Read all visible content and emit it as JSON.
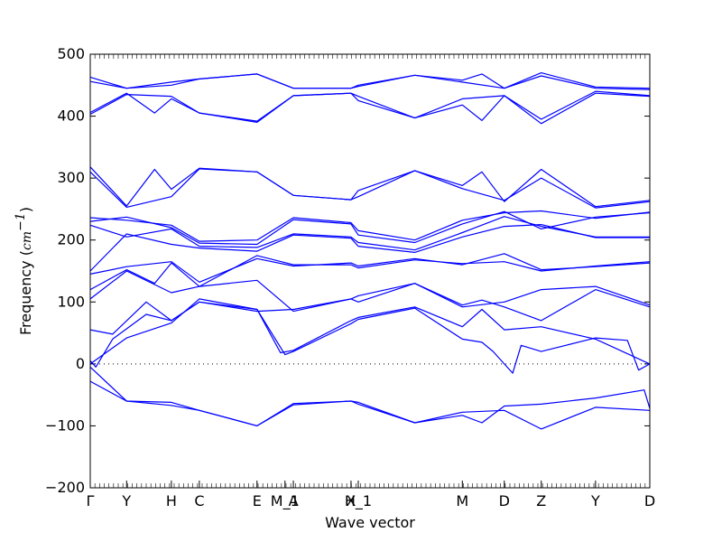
{
  "chart_data": {
    "type": "line",
    "title": "",
    "xlabel": "Wave vector",
    "ylabel": "Frequency (cm⁻¹)",
    "ylabel_prefix": "Frequency (",
    "ylabel_unit": "cm",
    "ylabel_exp": "−1",
    "ylabel_suffix": ")",
    "xlim": [
      0,
      1
    ],
    "ylim": [
      -200,
      500
    ],
    "yticks": [
      -200,
      -100,
      0,
      100,
      200,
      300,
      400,
      500
    ],
    "yticklabels": [
      "−200",
      "−100",
      "0",
      "100",
      "200",
      "300",
      "400",
      "500"
    ],
    "zero_line": true,
    "line_color": "#0000ff",
    "high_symmetry_points": [
      {
        "label": "Γ",
        "x": 0.0
      },
      {
        "label": "Y",
        "x": 0.065
      },
      {
        "label": "H",
        "x": 0.145
      },
      {
        "label": "C",
        "x": 0.195
      },
      {
        "label": "E",
        "x": 0.298
      },
      {
        "label": "M_1",
        "x": 0.348
      },
      {
        "label": "A",
        "x": 0.363
      },
      {
        "label": "X",
        "x": 0.466
      },
      {
        "label": "H_1",
        "x": 0.479
      },
      {
        "label": "M",
        "x": 0.665
      },
      {
        "label": "D",
        "x": 0.74
      },
      {
        "label": "Z",
        "x": 0.806
      },
      {
        "label": "Y",
        "x": 0.903
      },
      {
        "label": "D",
        "x": 1.0
      }
    ],
    "series": [
      {
        "x": [
          0,
          0.065,
          0.145,
          0.195,
          0.298,
          0.363,
          0.466,
          0.479,
          0.58,
          0.665,
          0.7,
          0.74,
          0.806,
          0.903,
          1.0
        ],
        "y": [
          463,
          445,
          455,
          460,
          468,
          445,
          445,
          450,
          466,
          458,
          468,
          445,
          470,
          447,
          445
        ]
      },
      {
        "x": [
          0,
          0.065,
          0.145,
          0.195,
          0.298,
          0.363,
          0.466,
          0.479,
          0.58,
          0.665,
          0.74,
          0.806,
          0.903,
          1.0
        ],
        "y": [
          456,
          445,
          450,
          460,
          468,
          445,
          445,
          448,
          466,
          455,
          445,
          465,
          445,
          443
        ]
      },
      {
        "x": [
          0,
          0.065,
          0.115,
          0.145,
          0.195,
          0.298,
          0.363,
          0.466,
          0.479,
          0.58,
          0.665,
          0.7,
          0.74,
          0.806,
          0.903,
          1.0
        ],
        "y": [
          406,
          437,
          405,
          428,
          405,
          392,
          433,
          437,
          432,
          397,
          418,
          393,
          433,
          395,
          440,
          433
        ]
      },
      {
        "x": [
          0,
          0.065,
          0.145,
          0.195,
          0.298,
          0.363,
          0.466,
          0.479,
          0.58,
          0.665,
          0.74,
          0.806,
          0.903,
          1.0
        ],
        "y": [
          403,
          435,
          432,
          405,
          390,
          433,
          437,
          425,
          397,
          428,
          433,
          388,
          437,
          432
        ]
      },
      {
        "x": [
          0,
          0.065,
          0.115,
          0.145,
          0.195,
          0.298,
          0.363,
          0.466,
          0.479,
          0.58,
          0.665,
          0.7,
          0.74,
          0.806,
          0.903,
          1.0
        ],
        "y": [
          318,
          255,
          314,
          282,
          316,
          310,
          272,
          265,
          280,
          312,
          288,
          310,
          262,
          314,
          254,
          264
        ]
      },
      {
        "x": [
          0,
          0.065,
          0.145,
          0.195,
          0.298,
          0.363,
          0.466,
          0.479,
          0.58,
          0.665,
          0.74,
          0.806,
          0.903,
          1.0
        ],
        "y": [
          310,
          253,
          270,
          315,
          310,
          272,
          265,
          270,
          312,
          283,
          264,
          300,
          252,
          262
        ]
      },
      {
        "x": [
          0,
          0.065,
          0.145,
          0.195,
          0.298,
          0.363,
          0.466,
          0.479,
          0.58,
          0.665,
          0.74,
          0.806,
          0.903,
          1.0
        ],
        "y": [
          236,
          232,
          224,
          198,
          200,
          236,
          228,
          215,
          200,
          232,
          244,
          247,
          235,
          245
        ]
      },
      {
        "x": [
          0,
          0.065,
          0.145,
          0.195,
          0.298,
          0.363,
          0.466,
          0.479,
          0.58,
          0.665,
          0.74,
          0.806,
          0.903,
          1.0
        ],
        "y": [
          230,
          237,
          220,
          195,
          193,
          233,
          226,
          208,
          196,
          226,
          246,
          218,
          237,
          244
        ]
      },
      {
        "x": [
          0,
          0.065,
          0.145,
          0.195,
          0.298,
          0.363,
          0.466,
          0.479,
          0.58,
          0.665,
          0.74,
          0.806,
          0.903,
          1.0
        ],
        "y": [
          224,
          205,
          218,
          190,
          188,
          210,
          205,
          196,
          184,
          212,
          238,
          222,
          205,
          205
        ]
      },
      {
        "x": [
          0,
          0.065,
          0.145,
          0.195,
          0.298,
          0.363,
          0.466,
          0.479,
          0.58,
          0.665,
          0.74,
          0.806,
          0.903,
          1.0
        ],
        "y": [
          150,
          210,
          193,
          187,
          182,
          208,
          203,
          190,
          180,
          205,
          222,
          225,
          204,
          204
        ]
      },
      {
        "x": [
          0,
          0.065,
          0.145,
          0.195,
          0.298,
          0.363,
          0.466,
          0.479,
          0.58,
          0.665,
          0.74,
          0.806,
          0.903,
          1.0
        ],
        "y": [
          145,
          157,
          165,
          132,
          170,
          158,
          163,
          158,
          170,
          160,
          178,
          152,
          157,
          163
        ]
      },
      {
        "x": [
          0,
          0.065,
          0.115,
          0.145,
          0.195,
          0.298,
          0.363,
          0.466,
          0.479,
          0.58,
          0.665,
          0.74,
          0.806,
          0.903,
          1.0
        ],
        "y": [
          120,
          152,
          130,
          163,
          125,
          175,
          160,
          160,
          155,
          168,
          162,
          165,
          150,
          158,
          165
        ]
      },
      {
        "x": [
          0,
          0.065,
          0.145,
          0.195,
          0.298,
          0.363,
          0.466,
          0.479,
          0.58,
          0.665,
          0.74,
          0.806,
          0.903,
          1.0
        ],
        "y": [
          105,
          150,
          115,
          125,
          135,
          85,
          105,
          110,
          130,
          92,
          100,
          120,
          125,
          95
        ]
      },
      {
        "x": [
          0,
          0.04,
          0.1,
          0.145,
          0.195,
          0.298,
          0.363,
          0.466,
          0.479,
          0.58,
          0.665,
          0.7,
          0.74,
          0.806,
          0.903,
          1.0
        ],
        "y": [
          55,
          48,
          100,
          70,
          100,
          85,
          88,
          105,
          100,
          130,
          95,
          103,
          92,
          70,
          120,
          92
        ]
      },
      {
        "x": [
          0,
          0.065,
          0.145,
          0.195,
          0.298,
          0.34,
          0.363,
          0.466,
          0.479,
          0.58,
          0.665,
          0.7,
          0.74,
          0.806,
          0.903,
          1.0
        ],
        "y": [
          0,
          42,
          66,
          105,
          88,
          18,
          22,
          70,
          75,
          92,
          60,
          88,
          55,
          60,
          40,
          0
        ]
      },
      {
        "x": [
          0,
          0.01,
          0.04,
          0.1,
          0.145,
          0.195,
          0.298,
          0.348,
          0.363,
          0.466,
          0.479,
          0.58,
          0.665,
          0.7,
          0.72,
          0.74,
          0.755,
          0.77,
          0.806,
          0.903,
          0.96,
          0.98,
          1.0
        ],
        "y": [
          5,
          -5,
          40,
          80,
          70,
          100,
          88,
          15,
          20,
          65,
          72,
          90,
          40,
          35,
          20,
          0,
          -15,
          30,
          20,
          42,
          38,
          -10,
          0
        ]
      },
      {
        "x": [
          0,
          0.065,
          0.145,
          0.195,
          0.298,
          0.363,
          0.466,
          0.479,
          0.58,
          0.665,
          0.7,
          0.74,
          0.806,
          0.903,
          0.99,
          1.0
        ],
        "y": [
          -28,
          -60,
          -67,
          -75,
          -100,
          -64,
          -60,
          -62,
          -95,
          -83,
          -95,
          -68,
          -65,
          -55,
          -42,
          -72
        ]
      },
      {
        "x": [
          0,
          0.065,
          0.145,
          0.195,
          0.298,
          0.363,
          0.466,
          0.479,
          0.58,
          0.665,
          0.74,
          0.806,
          0.903,
          1.0
        ],
        "y": [
          -5,
          -60,
          -62,
          -75,
          -100,
          -66,
          -60,
          -65,
          -95,
          -78,
          -75,
          -105,
          -70,
          -75
        ]
      }
    ]
  }
}
